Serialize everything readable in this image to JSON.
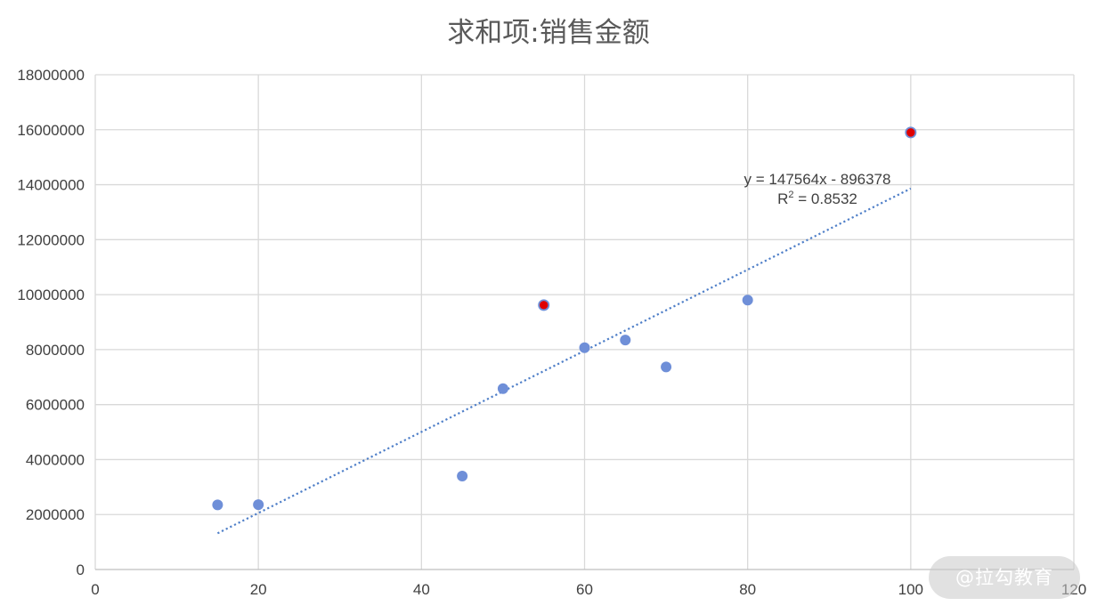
{
  "chart_data": {
    "type": "scatter",
    "title": "求和项:销售金额",
    "xlim": [
      0,
      120
    ],
    "ylim": [
      0,
      18000000
    ],
    "x_ticks": [
      0,
      20,
      40,
      60,
      80,
      100,
      120
    ],
    "y_ticks": [
      0,
      2000000,
      4000000,
      6000000,
      8000000,
      10000000,
      12000000,
      14000000,
      16000000,
      18000000
    ],
    "grid": true,
    "legend": "none",
    "point_color": "#6f8fd8",
    "highlight_color": "#e00000",
    "trendline_color": "#4f7fc8",
    "points": [
      {
        "x": 15,
        "y": 2350000,
        "highlight": false
      },
      {
        "x": 20,
        "y": 2360000,
        "highlight": false
      },
      {
        "x": 45,
        "y": 3400000,
        "highlight": false
      },
      {
        "x": 50,
        "y": 6580000,
        "highlight": false
      },
      {
        "x": 55,
        "y": 9620000,
        "highlight": true
      },
      {
        "x": 60,
        "y": 8070000,
        "highlight": false
      },
      {
        "x": 65,
        "y": 8350000,
        "highlight": false
      },
      {
        "x": 70,
        "y": 7370000,
        "highlight": false
      },
      {
        "x": 80,
        "y": 9800000,
        "highlight": false
      },
      {
        "x": 100,
        "y": 15900000,
        "highlight": true
      }
    ],
    "trendline": {
      "slope": 147564,
      "intercept": -896378,
      "x_range": [
        15,
        100
      ],
      "equation_label": "y = 147564x - 896378",
      "r2_prefix": "R",
      "r2_superscript": "2",
      "r2_value": " = 0.8532"
    }
  },
  "watermark": {
    "text": "@拉勾教育"
  }
}
